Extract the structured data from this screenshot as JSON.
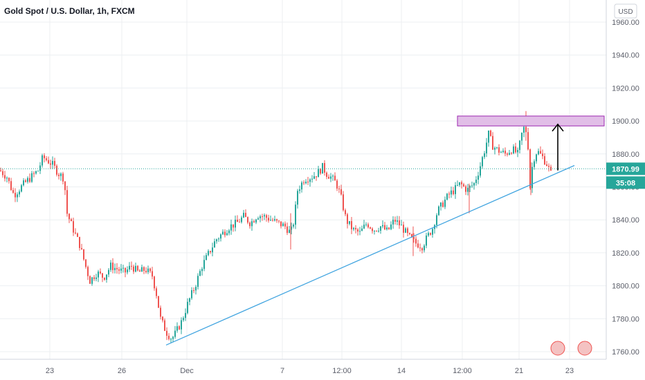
{
  "chart_data": {
    "type": "candlestick",
    "title": "Gold Spot / U.S. Dollar, 1h, FXCM",
    "currency": "USD",
    "ylim": [
      1756,
      1966
    ],
    "y_ticks": [
      1760,
      1780,
      1800,
      1820,
      1840,
      1860,
      1880,
      1900,
      1920,
      1940,
      1960
    ],
    "y_tick_labels": [
      "1760.00",
      "1780.00",
      "1800.00",
      "1820.00",
      "1840.00",
      "1860.00",
      "1880.00",
      "1900.00",
      "1920.00",
      "1940.00",
      "1960.00"
    ],
    "x_tick_labels": [
      "23",
      "26",
      "Dec",
      "7",
      "12:00",
      "14",
      "12:00",
      "21",
      "23"
    ],
    "grid": true,
    "last_price": "1870.99",
    "countdown": "35:08",
    "path": [
      [
        0,
        1870
      ],
      [
        10,
        1866
      ],
      [
        20,
        1855
      ],
      [
        35,
        1862
      ],
      [
        55,
        1870
      ],
      [
        62,
        1878
      ],
      [
        75,
        1874
      ],
      [
        85,
        1868
      ],
      [
        93,
        1865
      ],
      [
        96,
        1845
      ],
      [
        105,
        1835
      ],
      [
        115,
        1825
      ],
      [
        125,
        1810
      ],
      [
        130,
        1803
      ],
      [
        140,
        1808
      ],
      [
        150,
        1805
      ],
      [
        160,
        1812
      ],
      [
        170,
        1810
      ],
      [
        180,
        1808
      ],
      [
        190,
        1812
      ],
      [
        200,
        1808
      ],
      [
        210,
        1810
      ],
      [
        220,
        1806
      ],
      [
        226,
        1795
      ],
      [
        232,
        1780
      ],
      [
        240,
        1772
      ],
      [
        248,
        1768
      ],
      [
        252,
        1770
      ],
      [
        262,
        1778
      ],
      [
        272,
        1790
      ],
      [
        282,
        1800
      ],
      [
        292,
        1812
      ],
      [
        302,
        1820
      ],
      [
        312,
        1828
      ],
      [
        322,
        1832
      ],
      [
        332,
        1836
      ],
      [
        342,
        1838
      ],
      [
        352,
        1842
      ],
      [
        362,
        1838
      ],
      [
        372,
        1843
      ],
      [
        382,
        1842
      ],
      [
        392,
        1840
      ],
      [
        402,
        1838
      ],
      [
        412,
        1836
      ],
      [
        420,
        1832
      ],
      [
        425,
        1840
      ],
      [
        430,
        1858
      ],
      [
        440,
        1865
      ],
      [
        450,
        1866
      ],
      [
        458,
        1868
      ],
      [
        466,
        1872
      ],
      [
        472,
        1868
      ],
      [
        478,
        1866
      ],
      [
        486,
        1862
      ],
      [
        492,
        1855
      ],
      [
        500,
        1840
      ],
      [
        510,
        1834
      ],
      [
        520,
        1832
      ],
      [
        530,
        1838
      ],
      [
        540,
        1834
      ],
      [
        550,
        1836
      ],
      [
        560,
        1833
      ],
      [
        570,
        1840
      ],
      [
        580,
        1836
      ],
      [
        590,
        1830
      ],
      [
        600,
        1826
      ],
      [
        610,
        1824
      ],
      [
        618,
        1830
      ],
      [
        625,
        1835
      ],
      [
        632,
        1845
      ],
      [
        640,
        1850
      ],
      [
        648,
        1855
      ],
      [
        656,
        1858
      ],
      [
        665,
        1862
      ],
      [
        675,
        1858
      ],
      [
        685,
        1862
      ],
      [
        692,
        1870
      ],
      [
        700,
        1882
      ],
      [
        706,
        1892
      ],
      [
        712,
        1885
      ],
      [
        720,
        1882
      ],
      [
        730,
        1880
      ],
      [
        740,
        1883
      ],
      [
        748,
        1880
      ],
      [
        756,
        1896
      ],
      [
        762,
        1893
      ],
      [
        766,
        1860
      ],
      [
        770,
        1876
      ],
      [
        776,
        1882
      ],
      [
        784,
        1878
      ],
      [
        790,
        1874
      ],
      [
        796,
        1868
      ],
      [
        798,
        1867
      ]
    ],
    "wicks": [
      {
        "x": 760,
        "high": 1906,
        "low": 1888,
        "color": "red"
      },
      {
        "x": 767,
        "high": 1875,
        "low": 1855,
        "color": "red"
      },
      {
        "x": 678,
        "high": 1862,
        "low": 1844,
        "color": "red"
      },
      {
        "x": 597,
        "high": 1836,
        "low": 1818,
        "color": "red"
      },
      {
        "x": 420,
        "high": 1844,
        "low": 1822,
        "color": "red"
      }
    ],
    "trendline": {
      "x1": 240,
      "y1": 1764,
      "x2": 830,
      "y2": 1873
    },
    "resistance_zone": {
      "x1": 661,
      "x2": 873,
      "y_low": 1897,
      "y_high": 1903
    },
    "arrow": {
      "x": 806,
      "y_from": 1870,
      "y_to": 1898
    },
    "colors": {
      "up": "#26a69a",
      "down": "#ef5350",
      "trendline": "#42a5e0",
      "zone_fill": "#e1bee7",
      "zone_stroke": "#9c27b0",
      "last_price_badge": "#26a69a",
      "countdown_badge": "#26a69a",
      "price_line": "#26a69a"
    }
  }
}
